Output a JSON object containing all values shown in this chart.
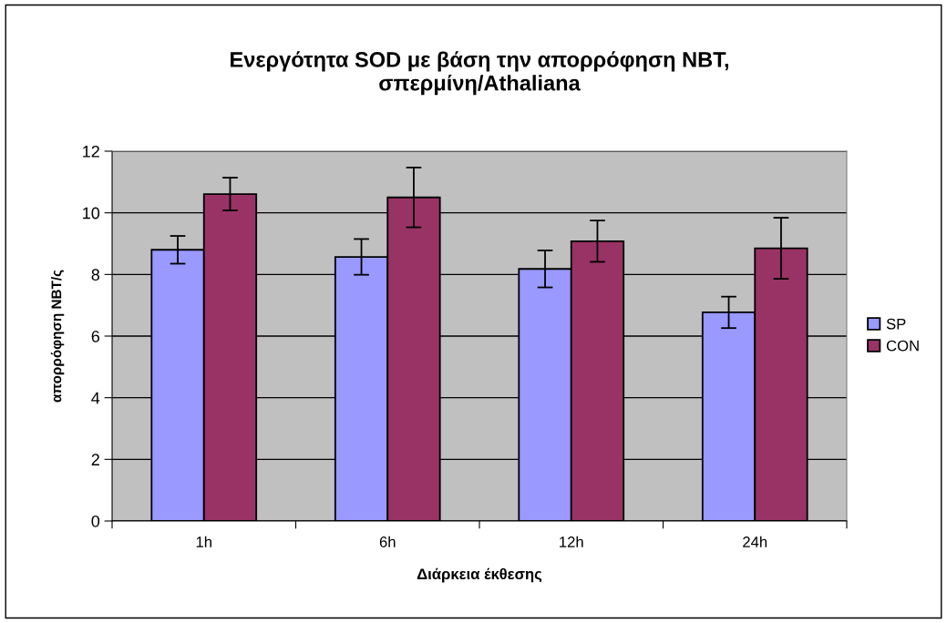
{
  "chart_data": {
    "type": "bar",
    "title": "Ενεργότητα SOD με βάση την απορρόφηση NBT,\nσπερμίνη/Athaliana",
    "xlabel": "Διάρκεια έκθεσης",
    "ylabel": "απορρόφηση NBT/ς",
    "categories": [
      "1h",
      "6h",
      "12h",
      "24h"
    ],
    "series": [
      {
        "name": "SP",
        "color": "#9999ff",
        "values": [
          8.8,
          8.57,
          8.18,
          6.77
        ],
        "errors": [
          0.45,
          0.58,
          0.6,
          0.51
        ]
      },
      {
        "name": "CON",
        "color": "#993366",
        "values": [
          10.61,
          10.5,
          9.08,
          8.85
        ],
        "errors": [
          0.53,
          0.97,
          0.67,
          0.99
        ]
      }
    ],
    "ylim": [
      0,
      12
    ],
    "yticks": [
      0,
      2,
      4,
      6,
      8,
      10,
      12
    ],
    "grid": "y",
    "legend": "right"
  }
}
